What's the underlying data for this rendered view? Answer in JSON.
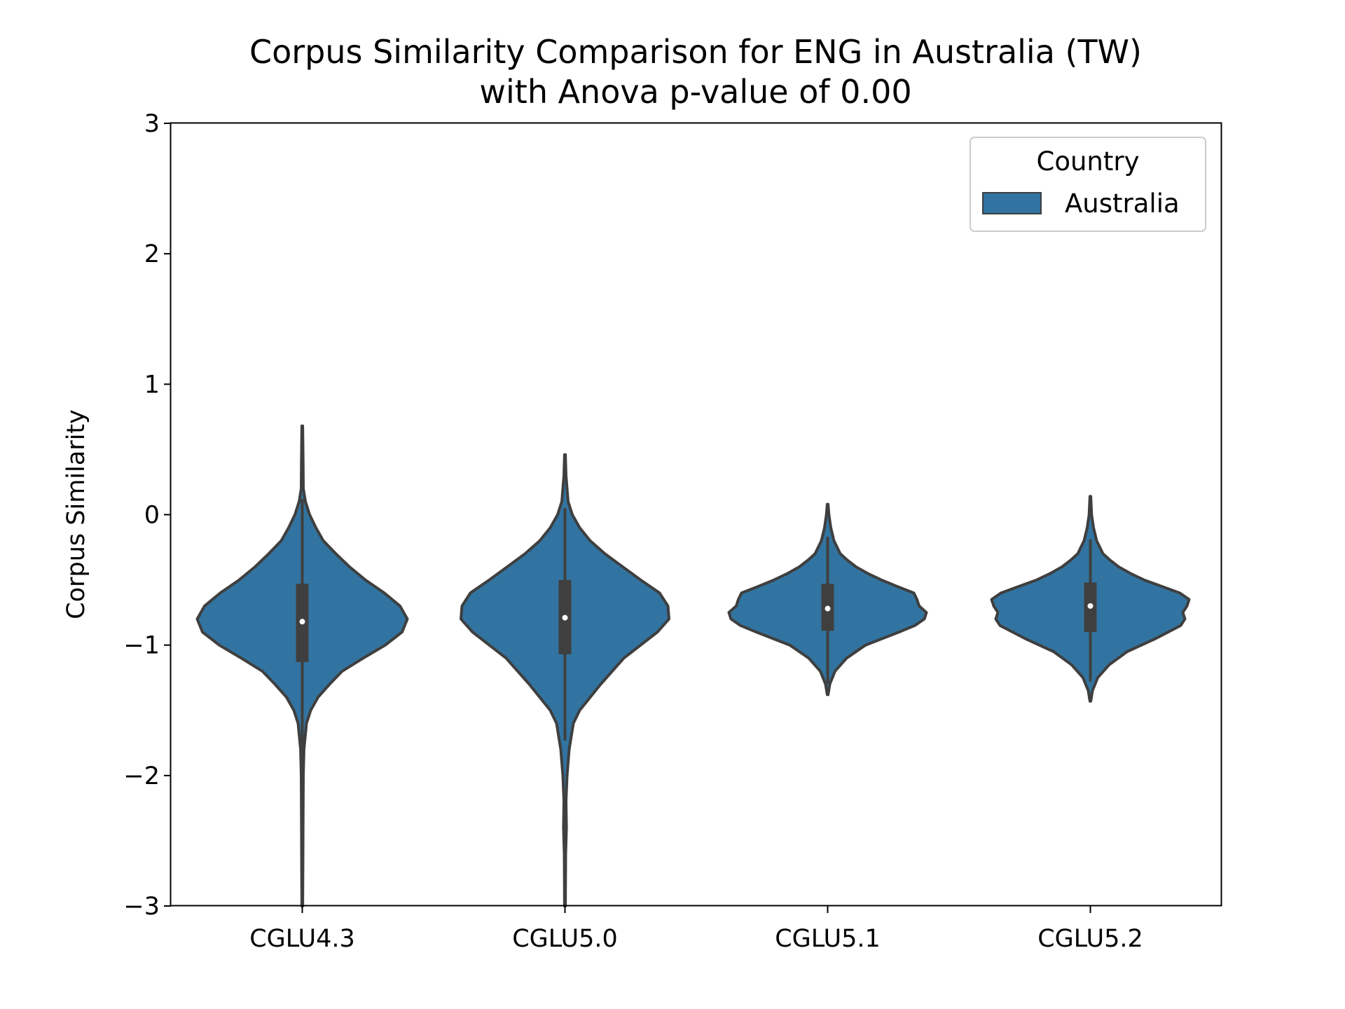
{
  "chart_data": {
    "type": "violin",
    "title_lines": [
      "Corpus Similarity Comparison for ENG in Australia (TW)",
      "with Anova p-value of 0.00"
    ],
    "xlabel": "",
    "ylabel": "Corpus Similarity",
    "ylim": [
      -3,
      3
    ],
    "yticks": [
      3,
      2,
      1,
      0,
      -1,
      -2,
      -3
    ],
    "ytick_labels": [
      "3",
      "2",
      "1",
      "0",
      "−1",
      "−2",
      "−3"
    ],
    "categories": [
      "CGLU4.3",
      "CGLU5.0",
      "CGLU5.1",
      "CGLU5.2"
    ],
    "grid": false,
    "legend": {
      "title": "Country",
      "entries": [
        "Australia"
      ],
      "location": "top-right"
    },
    "colors": {
      "fill": "#3274a1",
      "outline": "#3f3f3f",
      "median": "#ffffff"
    },
    "series": [
      {
        "name": "Australia",
        "violins": [
          {
            "category": "CGLU4.3",
            "min": -3.0,
            "max": 0.68,
            "q1": -1.13,
            "median": -0.82,
            "q3": -0.53,
            "whisker_low": -1.9,
            "whisker_high": 0.12,
            "density": [
              [
                -3.0,
                0.004
              ],
              [
                -2.7,
                0.006
              ],
              [
                -2.3,
                0.008
              ],
              [
                -2.0,
                0.01
              ],
              [
                -1.8,
                0.016
              ],
              [
                -1.6,
                0.04
              ],
              [
                -1.5,
                0.08
              ],
              [
                -1.4,
                0.15
              ],
              [
                -1.3,
                0.26
              ],
              [
                -1.2,
                0.38
              ],
              [
                -1.1,
                0.58
              ],
              [
                -1.0,
                0.79
              ],
              [
                -0.9,
                0.95
              ],
              [
                -0.8,
                1.0
              ],
              [
                -0.7,
                0.93
              ],
              [
                -0.6,
                0.78
              ],
              [
                -0.5,
                0.6
              ],
              [
                -0.4,
                0.45
              ],
              [
                -0.3,
                0.32
              ],
              [
                -0.2,
                0.2
              ],
              [
                -0.1,
                0.13
              ],
              [
                0.0,
                0.07
              ],
              [
                0.1,
                0.03
              ],
              [
                0.2,
                0.01
              ],
              [
                0.4,
                0.008
              ],
              [
                0.68,
                0.004
              ]
            ]
          },
          {
            "category": "CGLU5.0",
            "min": -3.0,
            "max": 0.46,
            "q1": -1.07,
            "median": -0.79,
            "q3": -0.5,
            "whisker_low": -1.73,
            "whisker_high": 0.05,
            "density": [
              [
                -3.0,
                0.004
              ],
              [
                -2.6,
                0.007
              ],
              [
                -2.4,
                0.014
              ],
              [
                -2.2,
                0.01
              ],
              [
                -2.0,
                0.02
              ],
              [
                -1.8,
                0.04
              ],
              [
                -1.6,
                0.08
              ],
              [
                -1.5,
                0.14
              ],
              [
                -1.4,
                0.24
              ],
              [
                -1.3,
                0.34
              ],
              [
                -1.2,
                0.45
              ],
              [
                -1.1,
                0.56
              ],
              [
                -1.0,
                0.72
              ],
              [
                -0.9,
                0.88
              ],
              [
                -0.8,
                0.99
              ],
              [
                -0.7,
                0.98
              ],
              [
                -0.6,
                0.9
              ],
              [
                -0.5,
                0.72
              ],
              [
                -0.4,
                0.55
              ],
              [
                -0.3,
                0.38
              ],
              [
                -0.2,
                0.24
              ],
              [
                -0.1,
                0.14
              ],
              [
                0.0,
                0.07
              ],
              [
                0.1,
                0.03
              ],
              [
                0.3,
                0.01
              ],
              [
                0.46,
                0.004
              ]
            ]
          },
          {
            "category": "CGLU5.1",
            "min": -1.38,
            "max": 0.08,
            "q1": -0.89,
            "median": -0.72,
            "q3": -0.53,
            "whisker_low": -1.3,
            "whisker_high": -0.17,
            "density": [
              [
                -1.38,
                0.004
              ],
              [
                -1.3,
                0.02
              ],
              [
                -1.2,
                0.07
              ],
              [
                -1.1,
                0.18
              ],
              [
                -1.0,
                0.36
              ],
              [
                -0.9,
                0.68
              ],
              [
                -0.85,
                0.83
              ],
              [
                -0.8,
                0.92
              ],
              [
                -0.75,
                0.94
              ],
              [
                -0.7,
                0.87
              ],
              [
                -0.65,
                0.85
              ],
              [
                -0.6,
                0.82
              ],
              [
                -0.55,
                0.66
              ],
              [
                -0.5,
                0.51
              ],
              [
                -0.45,
                0.38
              ],
              [
                -0.4,
                0.27
              ],
              [
                -0.35,
                0.19
              ],
              [
                -0.3,
                0.12
              ],
              [
                -0.2,
                0.06
              ],
              [
                -0.1,
                0.03
              ],
              [
                0.0,
                0.012
              ],
              [
                0.08,
                0.004
              ]
            ]
          },
          {
            "category": "CGLU5.2",
            "min": -1.43,
            "max": 0.14,
            "q1": -0.9,
            "median": -0.7,
            "q3": -0.52,
            "whisker_low": -1.28,
            "whisker_high": -0.19,
            "density": [
              [
                -1.43,
                0.004
              ],
              [
                -1.35,
                0.02
              ],
              [
                -1.25,
                0.07
              ],
              [
                -1.15,
                0.18
              ],
              [
                -1.05,
                0.35
              ],
              [
                -0.95,
                0.62
              ],
              [
                -0.85,
                0.86
              ],
              [
                -0.8,
                0.9
              ],
              [
                -0.75,
                0.88
              ],
              [
                -0.7,
                0.92
              ],
              [
                -0.65,
                0.94
              ],
              [
                -0.6,
                0.85
              ],
              [
                -0.55,
                0.68
              ],
              [
                -0.5,
                0.51
              ],
              [
                -0.45,
                0.38
              ],
              [
                -0.4,
                0.27
              ],
              [
                -0.35,
                0.19
              ],
              [
                -0.3,
                0.12
              ],
              [
                -0.2,
                0.06
              ],
              [
                -0.1,
                0.03
              ],
              [
                0.0,
                0.012
              ],
              [
                0.14,
                0.004
              ]
            ]
          }
        ]
      }
    ]
  }
}
